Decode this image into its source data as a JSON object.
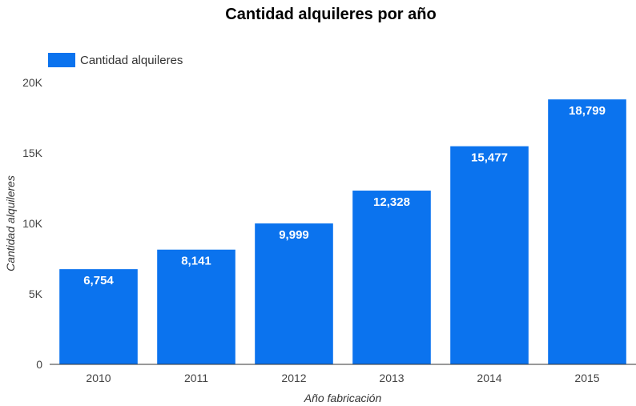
{
  "chart_data": {
    "type": "bar",
    "title": "Cantidad alquileres por año",
    "xlabel": "Año fabricación",
    "ylabel": "Cantidad alquileres",
    "categories": [
      "2010",
      "2011",
      "2012",
      "2013",
      "2014",
      "2015"
    ],
    "series": [
      {
        "name": "Cantidad alquileres",
        "values": [
          6754,
          8141,
          9999,
          12328,
          15477,
          18799
        ],
        "value_labels": [
          "6,754",
          "8,141",
          "9,999",
          "12,328",
          "15,477",
          "18,799"
        ]
      }
    ],
    "ylim": [
      0,
      20000
    ],
    "yticks": [
      0,
      5000,
      10000,
      15000,
      20000
    ],
    "ytick_labels": [
      "0",
      "5K",
      "10K",
      "15K",
      "20K"
    ],
    "grid": false,
    "legend_position": "top-left",
    "colors": {
      "bar": "#0b73ee",
      "axis": "#333333"
    }
  }
}
